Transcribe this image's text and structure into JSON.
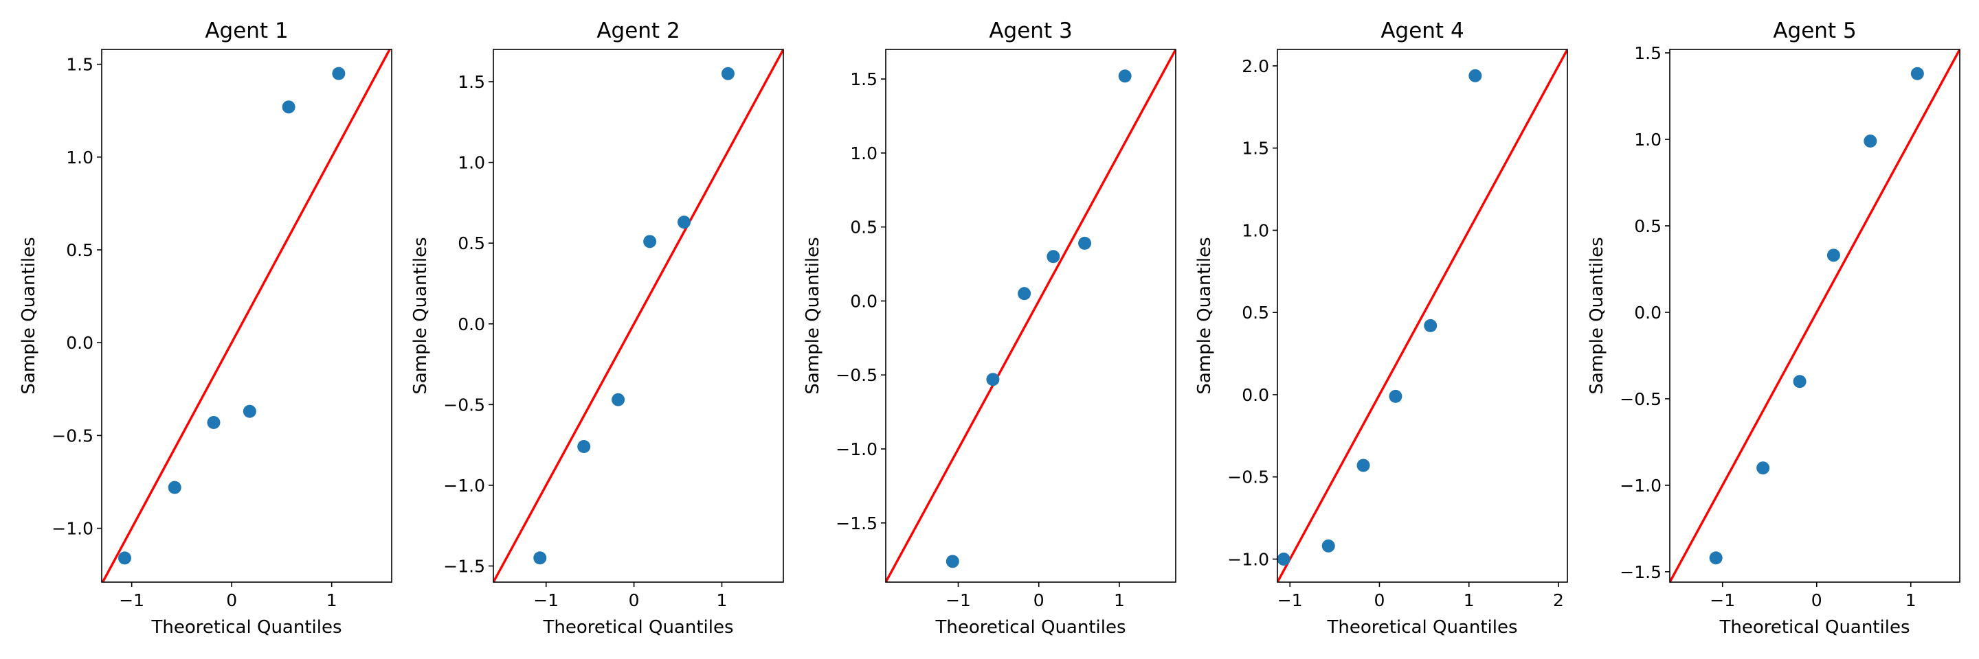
{
  "chart_data": [
    {
      "type": "scatter",
      "title": "Agent 1",
      "xlabel": "Theoretical Quantiles",
      "ylabel": "Sample Quantiles",
      "xlim": [
        -1.3,
        1.6
      ],
      "ylim": [
        -1.29,
        1.58
      ],
      "xticks": [
        -1,
        0,
        1
      ],
      "yticks": [
        -1.0,
        -0.5,
        0.0,
        0.5,
        1.0,
        1.5
      ],
      "points": [
        [
          -1.07,
          -1.16
        ],
        [
          -0.57,
          -0.78
        ],
        [
          -0.18,
          -0.43
        ],
        [
          0.18,
          -0.37
        ],
        [
          0.57,
          1.27
        ],
        [
          1.07,
          1.45
        ]
      ],
      "reference_line": [
        [
          -1.3,
          -1.3
        ],
        [
          1.6,
          1.6
        ]
      ],
      "point_color": "#1f77b4",
      "line_color": "#ff0000",
      "grid": false
    },
    {
      "type": "scatter",
      "title": "Agent 2",
      "xlabel": "Theoretical Quantiles",
      "ylabel": "Sample Quantiles",
      "xlim": [
        -1.6,
        1.7
      ],
      "ylim": [
        -1.6,
        1.7
      ],
      "xticks": [
        -1,
        0,
        1
      ],
      "yticks": [
        -1.5,
        -1.0,
        -0.5,
        0.0,
        0.5,
        1.0,
        1.5
      ],
      "points": [
        [
          -1.07,
          -1.45
        ],
        [
          -0.57,
          -0.76
        ],
        [
          -0.18,
          -0.47
        ],
        [
          0.18,
          0.51
        ],
        [
          0.57,
          0.63
        ],
        [
          1.07,
          1.55
        ]
      ],
      "reference_line": [
        [
          -1.6,
          -1.6
        ],
        [
          1.7,
          1.7
        ]
      ],
      "point_color": "#1f77b4",
      "line_color": "#ff0000",
      "grid": false
    },
    {
      "type": "scatter",
      "title": "Agent 3",
      "xlabel": "Theoretical Quantiles",
      "ylabel": "Sample Quantiles",
      "xlim": [
        -1.9,
        1.7
      ],
      "ylim": [
        -1.9,
        1.7
      ],
      "xticks": [
        -1,
        0,
        1
      ],
      "yticks": [
        -1.5,
        -1.0,
        -0.5,
        0.0,
        0.5,
        1.0,
        1.5
      ],
      "points": [
        [
          -1.07,
          -1.76
        ],
        [
          -0.57,
          -0.53
        ],
        [
          -0.18,
          0.05
        ],
        [
          0.18,
          0.3
        ],
        [
          0.57,
          0.39
        ],
        [
          1.07,
          1.52
        ]
      ],
      "reference_line": [
        [
          -1.9,
          -1.9
        ],
        [
          1.7,
          1.7
        ]
      ],
      "point_color": "#1f77b4",
      "line_color": "#ff0000",
      "grid": false
    },
    {
      "type": "scatter",
      "title": "Agent 4",
      "xlabel": "Theoretical Quantiles",
      "ylabel": "Sample Quantiles",
      "xlim": [
        -1.14,
        2.1
      ],
      "ylim": [
        -1.14,
        2.1
      ],
      "xticks": [
        -1,
        0,
        1,
        2
      ],
      "yticks": [
        -1.0,
        -0.5,
        0.0,
        0.5,
        1.0,
        1.5,
        2.0
      ],
      "points": [
        [
          -1.07,
          -1.0
        ],
        [
          -0.57,
          -0.92
        ],
        [
          -0.18,
          -0.43
        ],
        [
          0.18,
          -0.01
        ],
        [
          0.57,
          0.42
        ],
        [
          1.07,
          1.94
        ]
      ],
      "reference_line": [
        [
          -1.14,
          -1.14
        ],
        [
          2.1,
          2.1
        ]
      ],
      "point_color": "#1f77b4",
      "line_color": "#ff0000",
      "grid": false
    },
    {
      "type": "scatter",
      "title": "Agent 5",
      "xlabel": "Theoretical Quantiles",
      "ylabel": "Sample Quantiles",
      "xlim": [
        -1.56,
        1.52
      ],
      "ylim": [
        -1.56,
        1.52
      ],
      "xticks": [
        -1,
        0,
        1
      ],
      "yticks": [
        -1.5,
        -1.0,
        -0.5,
        0.0,
        0.5,
        1.0,
        1.5
      ],
      "points": [
        [
          -1.07,
          -1.42
        ],
        [
          -0.57,
          -0.9
        ],
        [
          -0.18,
          -0.4
        ],
        [
          0.18,
          0.33
        ],
        [
          0.57,
          0.99
        ],
        [
          1.07,
          1.38
        ]
      ],
      "reference_line": [
        [
          -1.56,
          -1.56
        ],
        [
          1.52,
          1.52
        ]
      ],
      "point_color": "#1f77b4",
      "line_color": "#ff0000",
      "grid": false
    }
  ]
}
